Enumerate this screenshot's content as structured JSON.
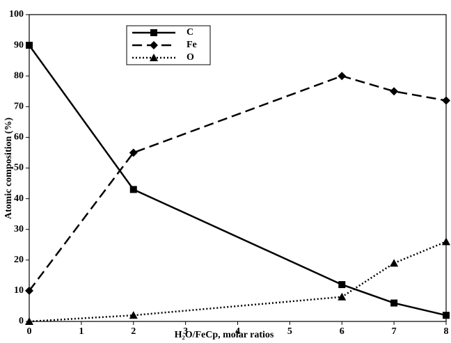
{
  "chart_data": {
    "type": "line",
    "x_label": "H₂O/FeCp, molar ratios",
    "y_label": "Atomic composition (%)",
    "x": [
      0,
      2,
      6,
      7,
      8
    ],
    "series": [
      {
        "name": "C",
        "color": "#000000",
        "dash": "solid",
        "marker": "square",
        "values": [
          90,
          43,
          12,
          6,
          2
        ]
      },
      {
        "name": "Fe",
        "color": "#000000",
        "dash": "dashed",
        "marker": "diamond",
        "values": [
          10,
          55,
          80,
          75,
          72
        ]
      },
      {
        "name": "O",
        "color": "#000000",
        "dash": "dotted",
        "marker": "triangle",
        "values": [
          0,
          2,
          8,
          19,
          26
        ]
      }
    ],
    "xlim": [
      0,
      8
    ],
    "xticks": [
      0,
      1,
      2,
      3,
      4,
      5,
      6,
      7,
      8
    ],
    "ylim": [
      0,
      100
    ],
    "yticks": [
      0,
      10,
      20,
      30,
      40,
      50,
      60,
      70,
      80,
      90,
      100
    ],
    "grid": false,
    "legend": "upper left"
  }
}
